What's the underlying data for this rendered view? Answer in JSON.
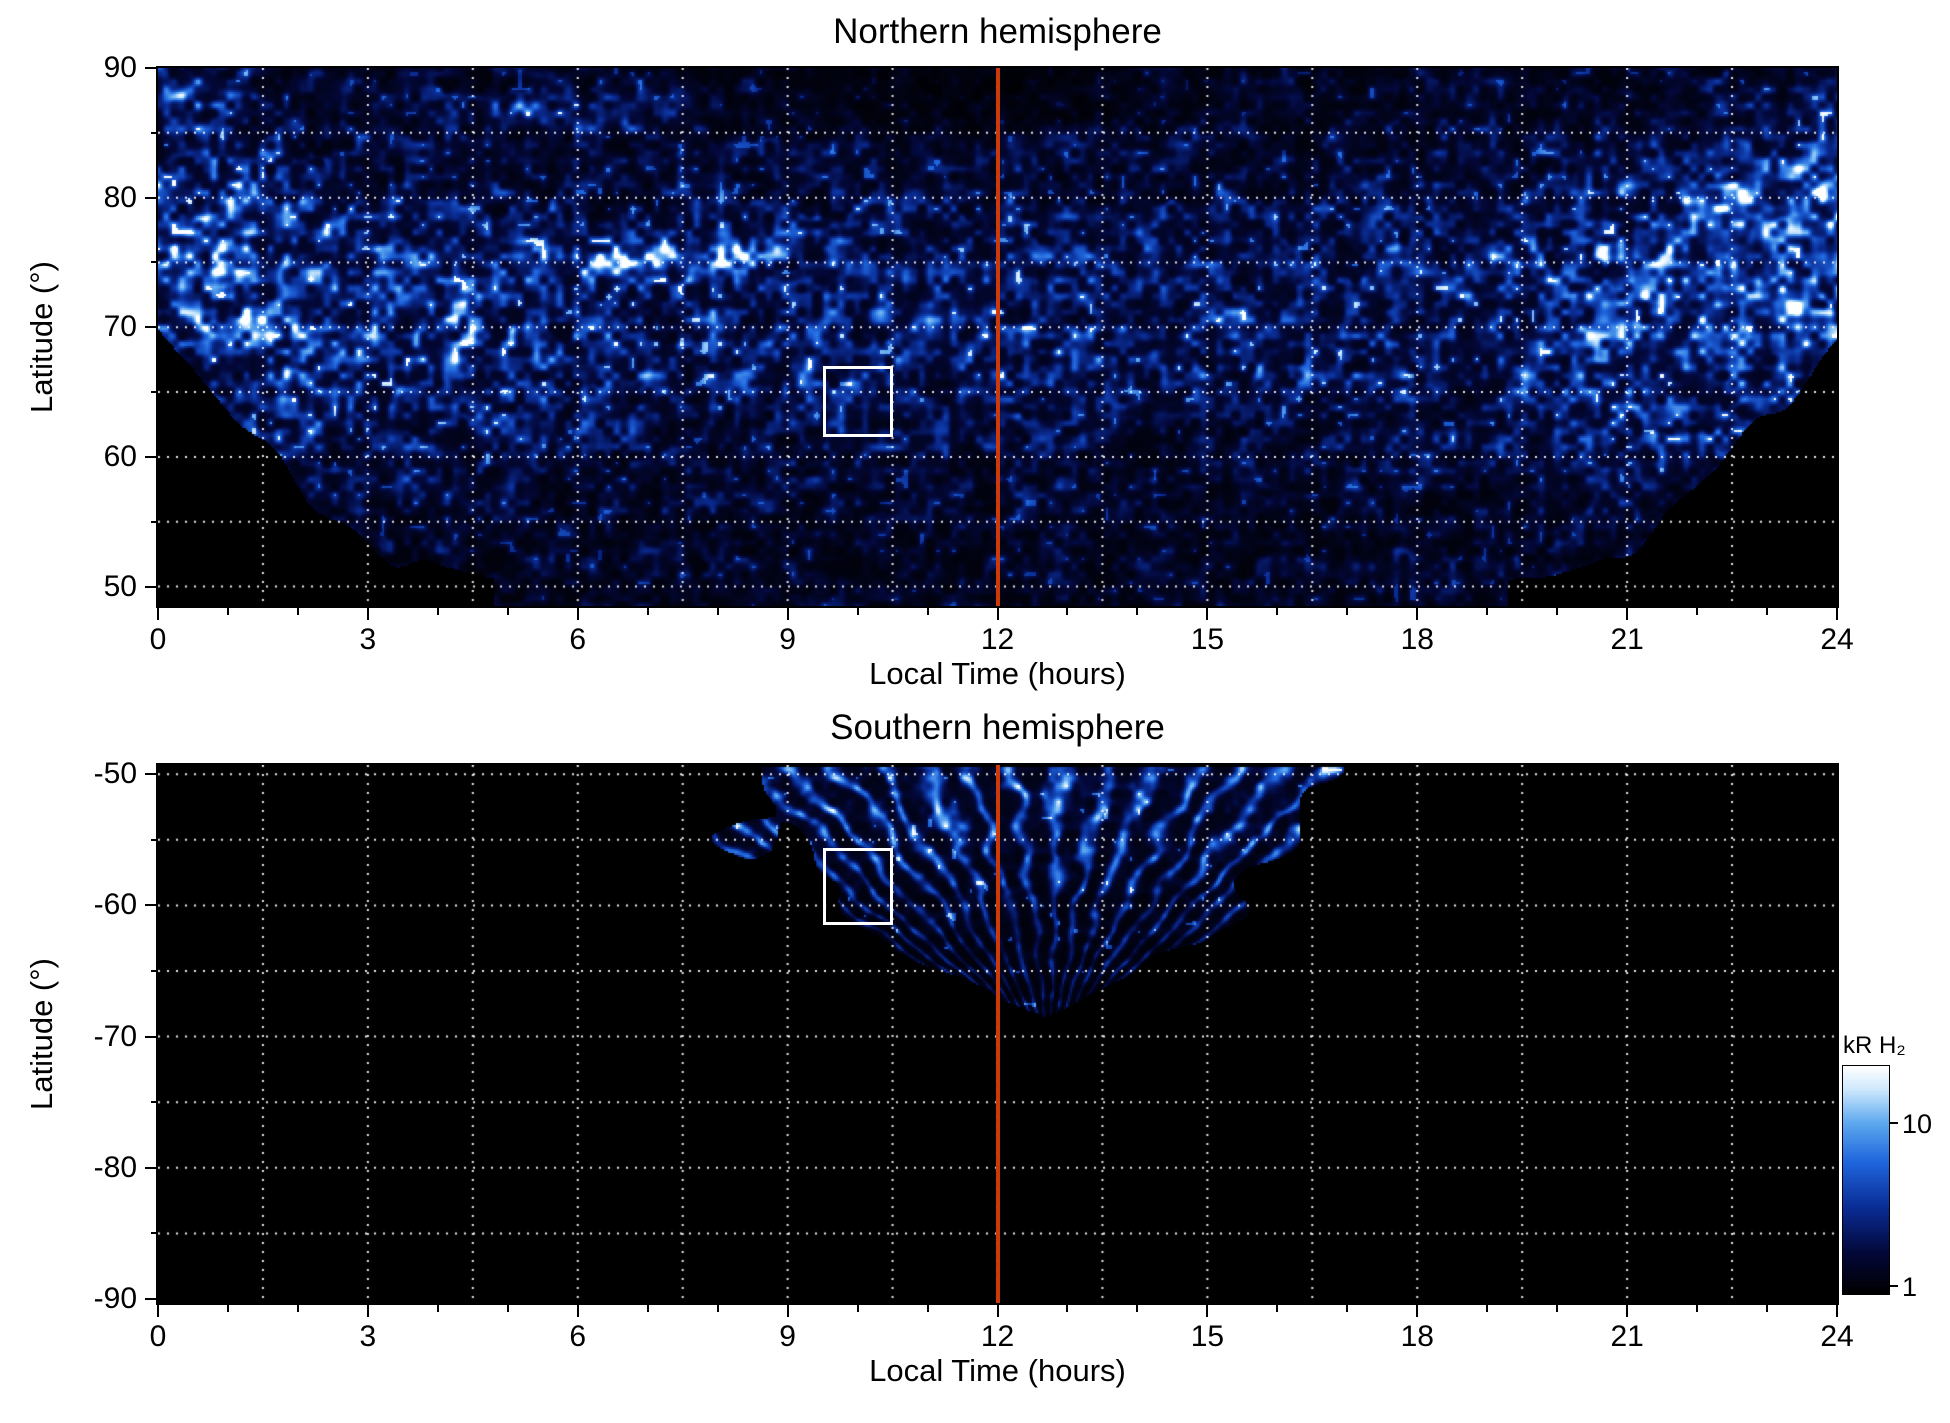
{
  "figure": {
    "background": "#ffffff",
    "panel_titles": [
      "Northern hemisphere",
      "Southern hemisphere"
    ]
  },
  "colorbar": {
    "label": "kR H₂",
    "scale": "log",
    "ticks": [
      {
        "label": "10",
        "frac_from_top": 0.25
      },
      {
        "label": "1",
        "frac_from_top": 0.965
      }
    ],
    "colormap_stops": [
      {
        "t": 0.0,
        "color": "#000000"
      },
      {
        "t": 0.18,
        "color": "#03083a"
      },
      {
        "t": 0.38,
        "color": "#0a2d96"
      },
      {
        "t": 0.58,
        "color": "#1f66dd"
      },
      {
        "t": 0.75,
        "color": "#5ea8ef"
      },
      {
        "t": 0.9,
        "color": "#cfe9fd"
      },
      {
        "t": 1.0,
        "color": "#ffffff"
      }
    ]
  },
  "chart_data": [
    {
      "type": "heatmap",
      "hemisphere": "north",
      "title": "Northern hemisphere",
      "xlabel": "Local Time (hours)",
      "ylabel": "Latitude (°)",
      "xlim": [
        0,
        24
      ],
      "ylim": [
        48.5,
        90
      ],
      "xticks": [
        0,
        3,
        6,
        9,
        12,
        15,
        18,
        21,
        24
      ],
      "yticks": [
        90,
        80,
        70,
        60,
        50
      ],
      "x_minor_step": 1,
      "y_minor_step": 5,
      "grid": {
        "x_step": 1.5,
        "y_step": 5,
        "color": "#ffffff",
        "style": "dotted"
      },
      "noon_line": {
        "x": 12,
        "color": "#cd3a0a"
      },
      "annotation_box": {
        "lt_min": 9.5,
        "lt_max": 10.5,
        "lat_min": 61.5,
        "lat_max": 67.0,
        "color": "#ffffff"
      },
      "coverage": {
        "left_corner": {
          "lt_end": 4.8,
          "lat_at_lt0": 70.5,
          "exponent": 1.7
        },
        "right_corner": {
          "lt_start": 19.3,
          "lat_at_lt24": 69.0,
          "exponent": 1.7
        }
      },
      "features": {
        "auroral_band": {
          "lat_center": 71,
          "lat_sigma": 10
        },
        "bright_regions": [
          {
            "lt": 0.4,
            "lat": 88.5,
            "lt_sigma": 0.8,
            "lat_sigma": 2.0,
            "amp": 0.6
          },
          {
            "lt": 0.5,
            "lat": 79.0,
            "lt_sigma": 1.6,
            "lat_sigma": 8.0,
            "amp": 0.5
          },
          {
            "lt": 3.0,
            "lat": 69.0,
            "lt_sigma": 2.4,
            "lat_sigma": 8.0,
            "amp": 0.35
          },
          {
            "lt": 5.8,
            "lat": 86.5,
            "lt_sigma": 1.5,
            "lat_sigma": 1.5,
            "amp": 0.55
          },
          {
            "lt": 7.2,
            "lat": 75.4,
            "lt_sigma": 1.3,
            "lat_sigma": 1.2,
            "amp": 1.35
          },
          {
            "lt": 21.3,
            "lat": 64.0,
            "lt_sigma": 1.8,
            "lat_sigma": 7.0,
            "amp": 0.3
          },
          {
            "lt": 22.5,
            "lat": 76.0,
            "lt_sigma": 2.2,
            "lat_sigma": 8.0,
            "amp": 0.55
          },
          {
            "lt": 23.6,
            "lat": 82.0,
            "lt_sigma": 1.0,
            "lat_sigma": 6.0,
            "amp": 0.5
          }
        ],
        "dim_region": {
          "lt": 11.8,
          "lat": 88.5,
          "lt_sigma": 2.6,
          "lat_sigma": 3.2,
          "amp": 0.75
        }
      },
      "seed": 7
    },
    {
      "type": "heatmap",
      "hemisphere": "south",
      "title": "Southern hemisphere",
      "xlabel": "Local Time (hours)",
      "ylabel": "Latitude (°)",
      "xlim": [
        0,
        24
      ],
      "ylim": [
        -90.3,
        -49.3
      ],
      "xticks": [
        0,
        3,
        6,
        9,
        12,
        15,
        18,
        21,
        24
      ],
      "yticks": [
        -50,
        -60,
        -70,
        -80,
        -90
      ],
      "x_minor_step": 1,
      "y_minor_step": 5,
      "grid": {
        "x_step": 1.5,
        "y_step": 5,
        "color": "#ffffff",
        "style": "dotted"
      },
      "noon_line": {
        "x": 12,
        "color": "#cd3a0a"
      },
      "annotation_box": {
        "lt_min": 9.5,
        "lt_max": 10.5,
        "lat_min": -61.5,
        "lat_max": -55.6,
        "color": "#ffffff"
      },
      "coverage": {
        "fan": {
          "lt_center": 12.3,
          "half_width_top": 4.0,
          "lat_top": -49.5,
          "lat_tip": -68.5,
          "exponent": 2.2,
          "center_drift": 0.02
        }
      },
      "features": {
        "top_brightness": 0.75,
        "tip_fade": 0.35,
        "spoke_count": 220
      },
      "seed": 13
    }
  ]
}
